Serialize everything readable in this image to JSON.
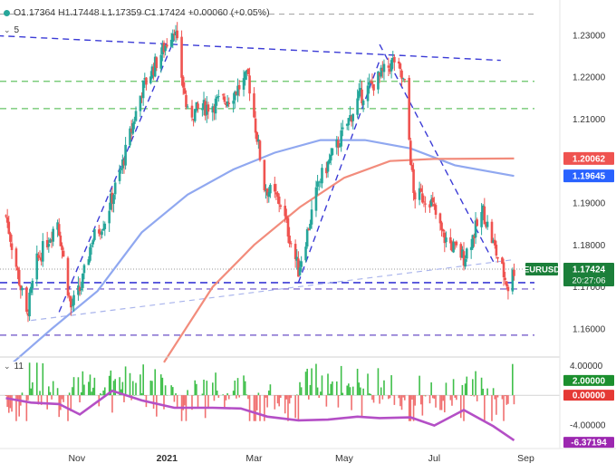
{
  "header": {
    "ohlc": "O1.17364  H1.17448  L1.17359  C1.17424  +0.00060 (+0.05%)"
  },
  "indicators": {
    "top_period": "5",
    "bottom_period": "11"
  },
  "colors": {
    "bull": "#26a69a",
    "bear": "#ef5350",
    "sma_blue": "#90a8f0",
    "sma_red": "#f28c7c",
    "trend": "#3b3bd6",
    "green_level": "#66c466",
    "gray_level": "#9e9e9e",
    "osc_line": "#b44fc6"
  },
  "chart_data": [
    {
      "type": "line",
      "title": "EURUSD",
      "symbol": "EURUSD",
      "x_tick_labels": [
        "Nov",
        "2021",
        "Mar",
        "May",
        "Jul",
        "Sep"
      ],
      "y_tick_labels": [
        "1.23000",
        "1.22000",
        "1.21000",
        "1.20000",
        "1.19000",
        "1.18000",
        "1.17000",
        "1.16000"
      ],
      "ylim": [
        1.1535,
        1.2345
      ],
      "grid": false,
      "series": [
        {
          "name": "",
          "role": "price (daily candles, approx. close path)",
          "x": [
            "2020-09-14",
            "2020-09-28",
            "2020-10-05",
            "2020-10-19",
            "2020-10-28",
            "2020-11-04",
            "2020-11-11",
            "2020-11-20",
            "2020-12-01",
            "2020-12-15",
            "2020-12-30",
            "2021-01-06",
            "2021-01-15",
            "2021-01-28",
            "2021-02-12",
            "2021-02-25",
            "2021-03-08",
            "2021-03-19",
            "2021-03-31",
            "2021-04-14",
            "2021-04-28",
            "2021-05-11",
            "2021-05-25",
            "2021-06-04",
            "2021-06-11",
            "2021-06-17",
            "2021-06-28",
            "2021-07-07",
            "2021-07-21",
            "2021-08-03",
            "2021-08-12",
            "2021-08-20",
            "2021-08-24"
          ],
          "values": [
            1.187,
            1.163,
            1.176,
            1.186,
            1.165,
            1.17,
            1.181,
            1.186,
            1.198,
            1.217,
            1.227,
            1.232,
            1.211,
            1.213,
            1.215,
            1.22,
            1.194,
            1.19,
            1.174,
            1.195,
            1.205,
            1.215,
            1.22,
            1.224,
            1.218,
            1.192,
            1.191,
            1.182,
            1.177,
            1.188,
            1.178,
            1.17,
            1.1742
          ]
        },
        {
          "name": "",
          "role": "blue moving average",
          "x": [
            "2020-09-14",
            "2020-10-15",
            "2020-11-15",
            "2020-12-15",
            "2021-01-15",
            "2021-02-15",
            "2021-03-15",
            "2021-04-15",
            "2021-05-15",
            "2021-06-15",
            "2021-07-15",
            "2021-08-24"
          ],
          "values": [
            1.1505,
            1.16,
            1.169,
            1.183,
            1.192,
            1.198,
            1.202,
            1.205,
            1.205,
            1.203,
            1.199,
            1.19645
          ]
        },
        {
          "name": "",
          "role": "red moving average",
          "x": [
            "2020-12-30",
            "2021-02-01",
            "2021-03-01",
            "2021-04-01",
            "2021-05-01",
            "2021-06-01",
            "2021-07-01",
            "2021-08-24"
          ],
          "values": [
            1.152,
            1.17,
            1.18,
            1.189,
            1.196,
            1.2,
            1.2005,
            1.20062
          ]
        }
      ],
      "horizontal_levels": [
        {
          "value": 1.235,
          "style": "gray-dashed"
        },
        {
          "value": 1.219,
          "style": "green-dashed"
        },
        {
          "value": 1.2125,
          "style": "green-dashed"
        },
        {
          "value": 1.171,
          "style": "blue-dashed"
        },
        {
          "value": 1.1695,
          "style": "purple-dashed"
        },
        {
          "value": 1.1585,
          "style": "purple-dashed"
        }
      ],
      "trendlines": [
        {
          "from": [
            "2020-09-01",
            1.23
          ],
          "to": [
            "2021-08-15",
            1.224
          ],
          "style": "blue-dashed"
        },
        {
          "from": [
            "2021-05-25",
            1.2278
          ],
          "to": [
            "2021-08-10",
            1.176
          ],
          "style": "blue-dashed"
        },
        {
          "from": [
            "2021-03-31",
            1.171
          ],
          "to": [
            "2021-05-25",
            1.224
          ],
          "style": "blue-dashed"
        },
        {
          "from": [
            "2020-10-20",
            1.164
          ],
          "to": [
            "2021-01-06",
            1.229
          ],
          "style": "blue-dashed"
        },
        {
          "from": [
            "2020-10-01",
            1.162
          ],
          "to": [
            "2021-08-24",
            1.1765
          ],
          "style": "light-dashed"
        }
      ],
      "price_labels": [
        {
          "text": "1.20062",
          "color": "#ef5350",
          "value": 1.20062
        },
        {
          "text": "1.19645",
          "color": "#2962ff",
          "value": 1.19645
        },
        {
          "text": "1.17424",
          "color": "#1b7f3a",
          "value": 1.17424,
          "symbol": "EURUSD",
          "countdown": "20:27:06"
        }
      ]
    },
    {
      "type": "bar",
      "title": "",
      "ylim": [
        -6.6,
        4.8
      ],
      "y_tick_labels": [
        "4.00000",
        "-4.00000"
      ],
      "series": [
        {
          "name": "",
          "role": "oscillator line",
          "x": [
            "2020-09-14",
            "2020-10-01",
            "2020-10-20",
            "2020-11-03",
            "2020-11-25",
            "2020-12-15",
            "2021-01-06",
            "2021-02-01",
            "2021-02-20",
            "2021-03-10",
            "2021-03-31",
            "2021-04-20",
            "2021-05-10",
            "2021-05-25",
            "2021-06-15",
            "2021-07-01",
            "2021-07-21",
            "2021-08-10",
            "2021-08-24"
          ],
          "values": [
            -0.4,
            -1.0,
            -1.2,
            -2.6,
            0.6,
            -0.7,
            -1.7,
            -1.7,
            -1.8,
            -2.9,
            -3.4,
            -3.3,
            -2.9,
            -3.1,
            -3.0,
            -4.1,
            -2.0,
            -4.2,
            -6.1
          ]
        }
      ],
      "price_labels": [
        {
          "text": "2.00000",
          "color": "#1b8f2e",
          "value": 2.0
        },
        {
          "text": "0.00000",
          "color": "#e53935",
          "value": 0.0
        },
        {
          "text": "-6.37194",
          "color": "#9c27b0",
          "value": -6.37194
        }
      ]
    }
  ]
}
